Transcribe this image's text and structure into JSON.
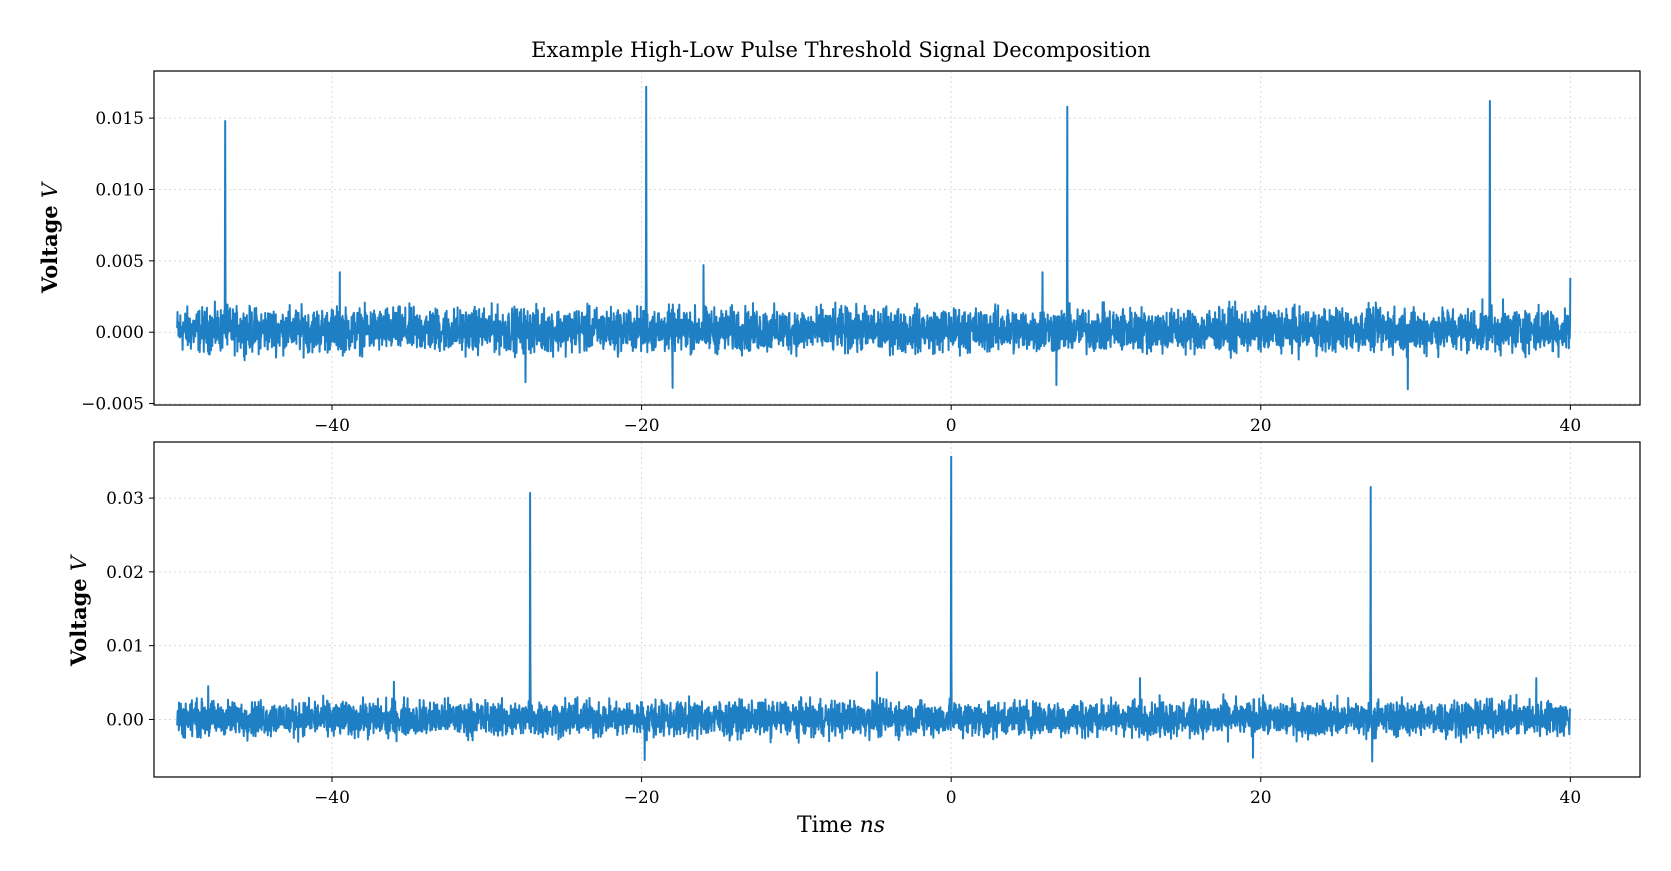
{
  "chart_data": [
    {
      "type": "line",
      "title": "Example High-Low Pulse Threshold Signal Decomposition",
      "ylabel": "Voltage",
      "ylabel_unit": "V",
      "xlim": [
        -51.5,
        44.5
      ],
      "ylim": [
        -0.0051,
        0.0183
      ],
      "xticks": [
        -40,
        -20,
        0,
        20,
        40
      ],
      "xtick_labels": [
        "−40",
        "−20",
        "0",
        "20",
        "40"
      ],
      "yticks": [
        -0.005,
        0.0,
        0.005,
        0.01,
        0.015
      ],
      "ytick_labels": [
        "−0.005",
        "0.000",
        "0.005",
        "0.010",
        "0.015"
      ],
      "grid": true,
      "color": "#1f7fc4",
      "x_range": [
        -50,
        40
      ],
      "noise_band": [
        -0.0022,
        0.0025
      ],
      "pulses": [
        {
          "x": -46.9,
          "peak": 0.0148
        },
        {
          "x": -19.7,
          "peak": 0.0172
        },
        {
          "x": 7.5,
          "peak": 0.0158
        },
        {
          "x": 34.8,
          "peak": 0.0162
        }
      ],
      "outliers": [
        {
          "x": -39.5,
          "y": 0.0042
        },
        {
          "x": -18.0,
          "y": -0.0039
        },
        {
          "x": -16.0,
          "y": 0.0047
        },
        {
          "x": 6.8,
          "y": -0.0037
        },
        {
          "x": 29.5,
          "y": -0.004
        },
        {
          "x": 40.0,
          "y": 0.0038
        },
        {
          "x": -27.5,
          "y": -0.0035
        },
        {
          "x": 5.9,
          "y": 0.0042
        }
      ]
    },
    {
      "type": "line",
      "xlabel": "Time",
      "xlabel_unit": "ns",
      "ylabel": "Voltage",
      "ylabel_unit": "V",
      "xlim": [
        -51.5,
        44.5
      ],
      "ylim": [
        -0.0078,
        0.0376
      ],
      "xticks": [
        -40,
        -20,
        0,
        20,
        40
      ],
      "xtick_labels": [
        "−40",
        "−20",
        "0",
        "20",
        "40"
      ],
      "yticks": [
        0.0,
        0.01,
        0.02,
        0.03
      ],
      "ytick_labels": [
        "0.00",
        "0.01",
        "0.02",
        "0.03"
      ],
      "grid": true,
      "color": "#1f7fc4",
      "x_range": [
        -50,
        40
      ],
      "noise_band": [
        -0.0035,
        0.0038
      ],
      "pulses": [
        {
          "x": -27.2,
          "peak": 0.0307
        },
        {
          "x": 0.0,
          "peak": 0.0356
        },
        {
          "x": 27.1,
          "peak": 0.0315
        }
      ],
      "outliers": [
        {
          "x": -19.8,
          "y": -0.0055
        },
        {
          "x": -4.8,
          "y": 0.0064
        },
        {
          "x": 19.5,
          "y": -0.0052
        },
        {
          "x": 27.2,
          "y": -0.0057
        },
        {
          "x": -36.0,
          "y": 0.0051
        },
        {
          "x": 37.8,
          "y": 0.0056
        },
        {
          "x": -48.0,
          "y": 0.0045
        },
        {
          "x": 12.2,
          "y": 0.0056
        }
      ]
    }
  ]
}
